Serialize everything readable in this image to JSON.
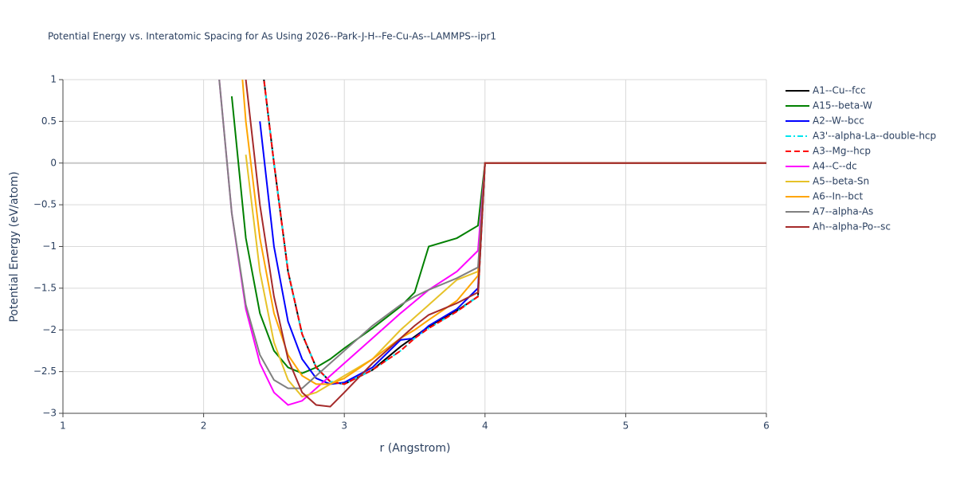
{
  "chart_data": {
    "type": "line",
    "title": "Potential Energy vs. Interatomic Spacing for As Using 2026--Park-J-H--Fe-Cu-As--LAMMPS--ipr1",
    "x_label": "r (Angstrom)",
    "y_label": "Potential Energy (eV/atom)",
    "xlim": [
      1,
      6
    ],
    "ylim": [
      -3,
      1
    ],
    "grid": true,
    "legend": "right",
    "xticks": [
      1,
      2,
      3,
      4,
      5,
      6
    ],
    "yticks": [
      1,
      0.5,
      0,
      {
        "value": -0.5,
        "label": "−0.5"
      },
      {
        "value": -1,
        "label": "−1"
      },
      {
        "value": -1.5,
        "label": "−1.5"
      },
      {
        "value": -2,
        "label": "−2"
      },
      {
        "value": -2.5,
        "label": "−2.5"
      },
      {
        "value": -3,
        "label": "−3"
      }
    ],
    "x": [
      2.1,
      2.2,
      2.3,
      2.4,
      2.5,
      2.6,
      2.7,
      2.8,
      2.9,
      3.0,
      3.2,
      3.4,
      3.5,
      3.6,
      3.8,
      3.95,
      4.0,
      6.0
    ],
    "series": [
      {
        "name": "A1--Cu--fcc",
        "color": "#000000",
        "dash": "solid",
        "values": [
          null,
          null,
          null,
          1.4,
          0.0,
          -1.3,
          -2.05,
          -2.45,
          -2.62,
          -2.65,
          -2.48,
          -2.2,
          -2.08,
          -1.96,
          -1.77,
          -1.6,
          0,
          0
        ]
      },
      {
        "name": "A15--beta-W",
        "color": "#008000",
        "dash": "solid",
        "values": [
          null,
          0.8,
          -0.9,
          -1.8,
          -2.25,
          -2.45,
          -2.52,
          -2.45,
          -2.35,
          -2.22,
          -1.98,
          -1.72,
          -1.55,
          -1.0,
          -0.9,
          -0.75,
          0,
          0
        ]
      },
      {
        "name": "A2--W--bcc",
        "color": "#0000ff",
        "dash": "solid",
        "values": [
          null,
          null,
          null,
          0.5,
          -1.0,
          -1.9,
          -2.35,
          -2.58,
          -2.65,
          -2.63,
          -2.45,
          -2.12,
          -2.1,
          -1.95,
          -1.75,
          -1.5,
          0,
          0
        ]
      },
      {
        "name": "A3'--alpha-La--double-hcp",
        "color": "#00e5ee",
        "dash": "dashdot",
        "values": [
          null,
          null,
          null,
          1.4,
          0.0,
          -1.3,
          -2.05,
          -2.45,
          -2.62,
          -2.65,
          -2.48,
          -2.25,
          -2.1,
          -1.98,
          -1.78,
          -1.6,
          0,
          0
        ]
      },
      {
        "name": "A3--Mg--hcp",
        "color": "#ff0000",
        "dash": "dash",
        "values": [
          null,
          null,
          null,
          1.4,
          0.0,
          -1.3,
          -2.05,
          -2.45,
          -2.62,
          -2.65,
          -2.48,
          -2.25,
          -2.1,
          -1.98,
          -1.78,
          -1.6,
          0,
          0
        ]
      },
      {
        "name": "A4--C--dc",
        "color": "#ff00ff",
        "dash": "solid",
        "values": [
          1.2,
          -0.6,
          -1.75,
          -2.4,
          -2.75,
          -2.9,
          -2.85,
          -2.7,
          -2.55,
          -2.4,
          -2.1,
          -1.8,
          -1.66,
          -1.52,
          -1.3,
          -1.05,
          0,
          0
        ]
      },
      {
        "name": "A5--beta-Sn",
        "color": "#e6c229",
        "dash": "solid",
        "values": [
          null,
          null,
          0.1,
          -1.3,
          -2.15,
          -2.6,
          -2.8,
          -2.75,
          -2.65,
          -2.55,
          -2.35,
          -2.0,
          -1.85,
          -1.7,
          -1.4,
          -1.3,
          0,
          0
        ]
      },
      {
        "name": "A6--In--bct",
        "color": "#ffa500",
        "dash": "solid",
        "values": [
          null,
          2.6,
          0.5,
          -0.9,
          -1.8,
          -2.3,
          -2.55,
          -2.65,
          -2.65,
          -2.58,
          -2.35,
          -2.1,
          -2.0,
          -1.88,
          -1.65,
          -1.35,
          0,
          0
        ]
      },
      {
        "name": "A7--alpha-As",
        "color": "#808080",
        "dash": "solid",
        "values": [
          1.2,
          -0.6,
          -1.7,
          -2.3,
          -2.6,
          -2.7,
          -2.7,
          -2.55,
          -2.4,
          -2.25,
          -1.95,
          -1.7,
          -1.6,
          -1.52,
          -1.38,
          -1.25,
          0,
          0
        ]
      },
      {
        "name": "Ah--alpha-Po--sc",
        "color": "#a52a2a",
        "dash": "solid",
        "values": [
          null,
          null,
          1.0,
          -0.5,
          -1.6,
          -2.35,
          -2.75,
          -2.9,
          -2.92,
          -2.75,
          -2.4,
          -2.1,
          -1.95,
          -1.82,
          -1.68,
          -1.55,
          0,
          0
        ]
      }
    ]
  }
}
